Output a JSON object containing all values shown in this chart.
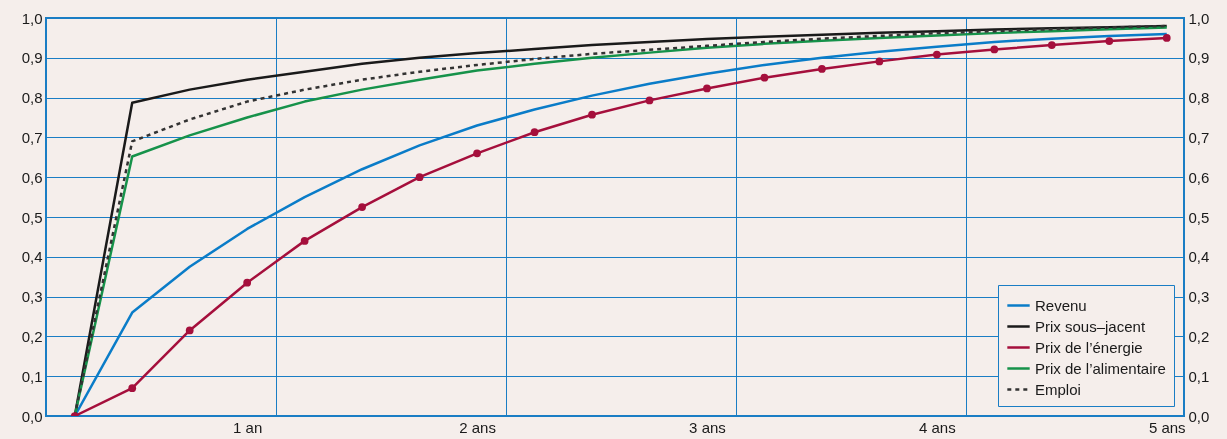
{
  "chart_data": {
    "type": "line",
    "x": [
      0.25,
      0.5,
      0.75,
      1,
      1.25,
      1.5,
      1.75,
      2,
      2.25,
      2.5,
      2.75,
      3,
      3.25,
      3.5,
      3.75,
      4,
      4.25,
      4.5,
      4.75,
      5
    ],
    "series": [
      {
        "name": "Revenu",
        "color": "#0a7cc8",
        "line_style": "solid",
        "marker": "none",
        "values": [
          0,
          0.26,
          0.375,
          0.47,
          0.55,
          0.62,
          0.68,
          0.73,
          0.77,
          0.805,
          0.835,
          0.86,
          0.882,
          0.9,
          0.915,
          0.928,
          0.94,
          0.948,
          0.955,
          0.96
        ]
      },
      {
        "name": "Prix sous–jacent",
        "color": "#1a1a1a",
        "line_style": "solid",
        "marker": "none",
        "values": [
          0,
          0.787,
          0.82,
          0.845,
          0.865,
          0.885,
          0.9,
          0.912,
          0.922,
          0.932,
          0.94,
          0.947,
          0.953,
          0.958,
          0.963,
          0.967,
          0.971,
          0.974,
          0.977,
          0.98
        ]
      },
      {
        "name": "Prix de l’énergie",
        "color": "#a50f3c",
        "line_style": "solid",
        "marker": "circle",
        "values": [
          0,
          0.07,
          0.215,
          0.335,
          0.44,
          0.525,
          0.6,
          0.66,
          0.713,
          0.757,
          0.793,
          0.823,
          0.85,
          0.872,
          0.891,
          0.908,
          0.921,
          0.932,
          0.942,
          0.95
        ]
      },
      {
        "name": "Prix de l’alimentaire",
        "color": "#16924a",
        "line_style": "solid",
        "marker": "none",
        "values": [
          0,
          0.652,
          0.705,
          0.75,
          0.79,
          0.82,
          0.845,
          0.868,
          0.885,
          0.9,
          0.913,
          0.925,
          0.935,
          0.943,
          0.95,
          0.956,
          0.962,
          0.967,
          0.972,
          0.976
        ]
      },
      {
        "name": "Emploi",
        "color": "#333333",
        "line_style": "dashed",
        "marker": "none",
        "values": [
          0,
          0.69,
          0.745,
          0.79,
          0.82,
          0.845,
          0.865,
          0.882,
          0.897,
          0.91,
          0.92,
          0.93,
          0.94,
          0.948,
          0.955,
          0.962,
          0.967,
          0.972,
          0.976,
          0.98
        ]
      }
    ],
    "xlim": [
      0.125,
      5.075
    ],
    "xticks": [
      {
        "value": 1,
        "label": "1 an"
      },
      {
        "value": 1.125,
        "label": null
      },
      {
        "value": 2,
        "label": "2 ans"
      },
      {
        "value": 2.125,
        "label": null
      },
      {
        "value": 3,
        "label": "3 ans"
      },
      {
        "value": 3.125,
        "label": null
      },
      {
        "value": 4,
        "label": "4 ans"
      },
      {
        "value": 4.125,
        "label": null
      },
      {
        "value": 5,
        "label": "5 ans"
      }
    ],
    "ylim": [
      0,
      1
    ],
    "yticks": [
      {
        "value": 0,
        "label": "0,0"
      },
      {
        "value": 0.1,
        "label": "0,1"
      },
      {
        "value": 0.2,
        "label": "0,2"
      },
      {
        "value": 0.3,
        "label": "0,3"
      },
      {
        "value": 0.4,
        "label": "0,4"
      },
      {
        "value": 0.5,
        "label": "0,5"
      },
      {
        "value": 0.6,
        "label": "0,6"
      },
      {
        "value": 0.7,
        "label": "0,7"
      },
      {
        "value": 0.8,
        "label": "0,8"
      },
      {
        "value": 0.9,
        "label": "0,9"
      },
      {
        "value": 1,
        "label": "1,0"
      }
    ],
    "y2lim": [
      0,
      1
    ],
    "y2ticks": [
      {
        "value": 0,
        "label": "0,0"
      },
      {
        "value": 0.1,
        "label": "0,1"
      },
      {
        "value": 0.2,
        "label": "0,2"
      },
      {
        "value": 0.3,
        "label": "0,3"
      },
      {
        "value": 0.4,
        "label": "0,4"
      },
      {
        "value": 0.5,
        "label": "0,5"
      },
      {
        "value": 0.6,
        "label": "0,6"
      },
      {
        "value": 0.7,
        "label": "0,7"
      },
      {
        "value": 0.8,
        "label": "0,8"
      },
      {
        "value": 0.9,
        "label": "0,9"
      },
      {
        "value": 1,
        "label": "1,0"
      }
    ],
    "grid": true,
    "legend": "bottom right"
  }
}
